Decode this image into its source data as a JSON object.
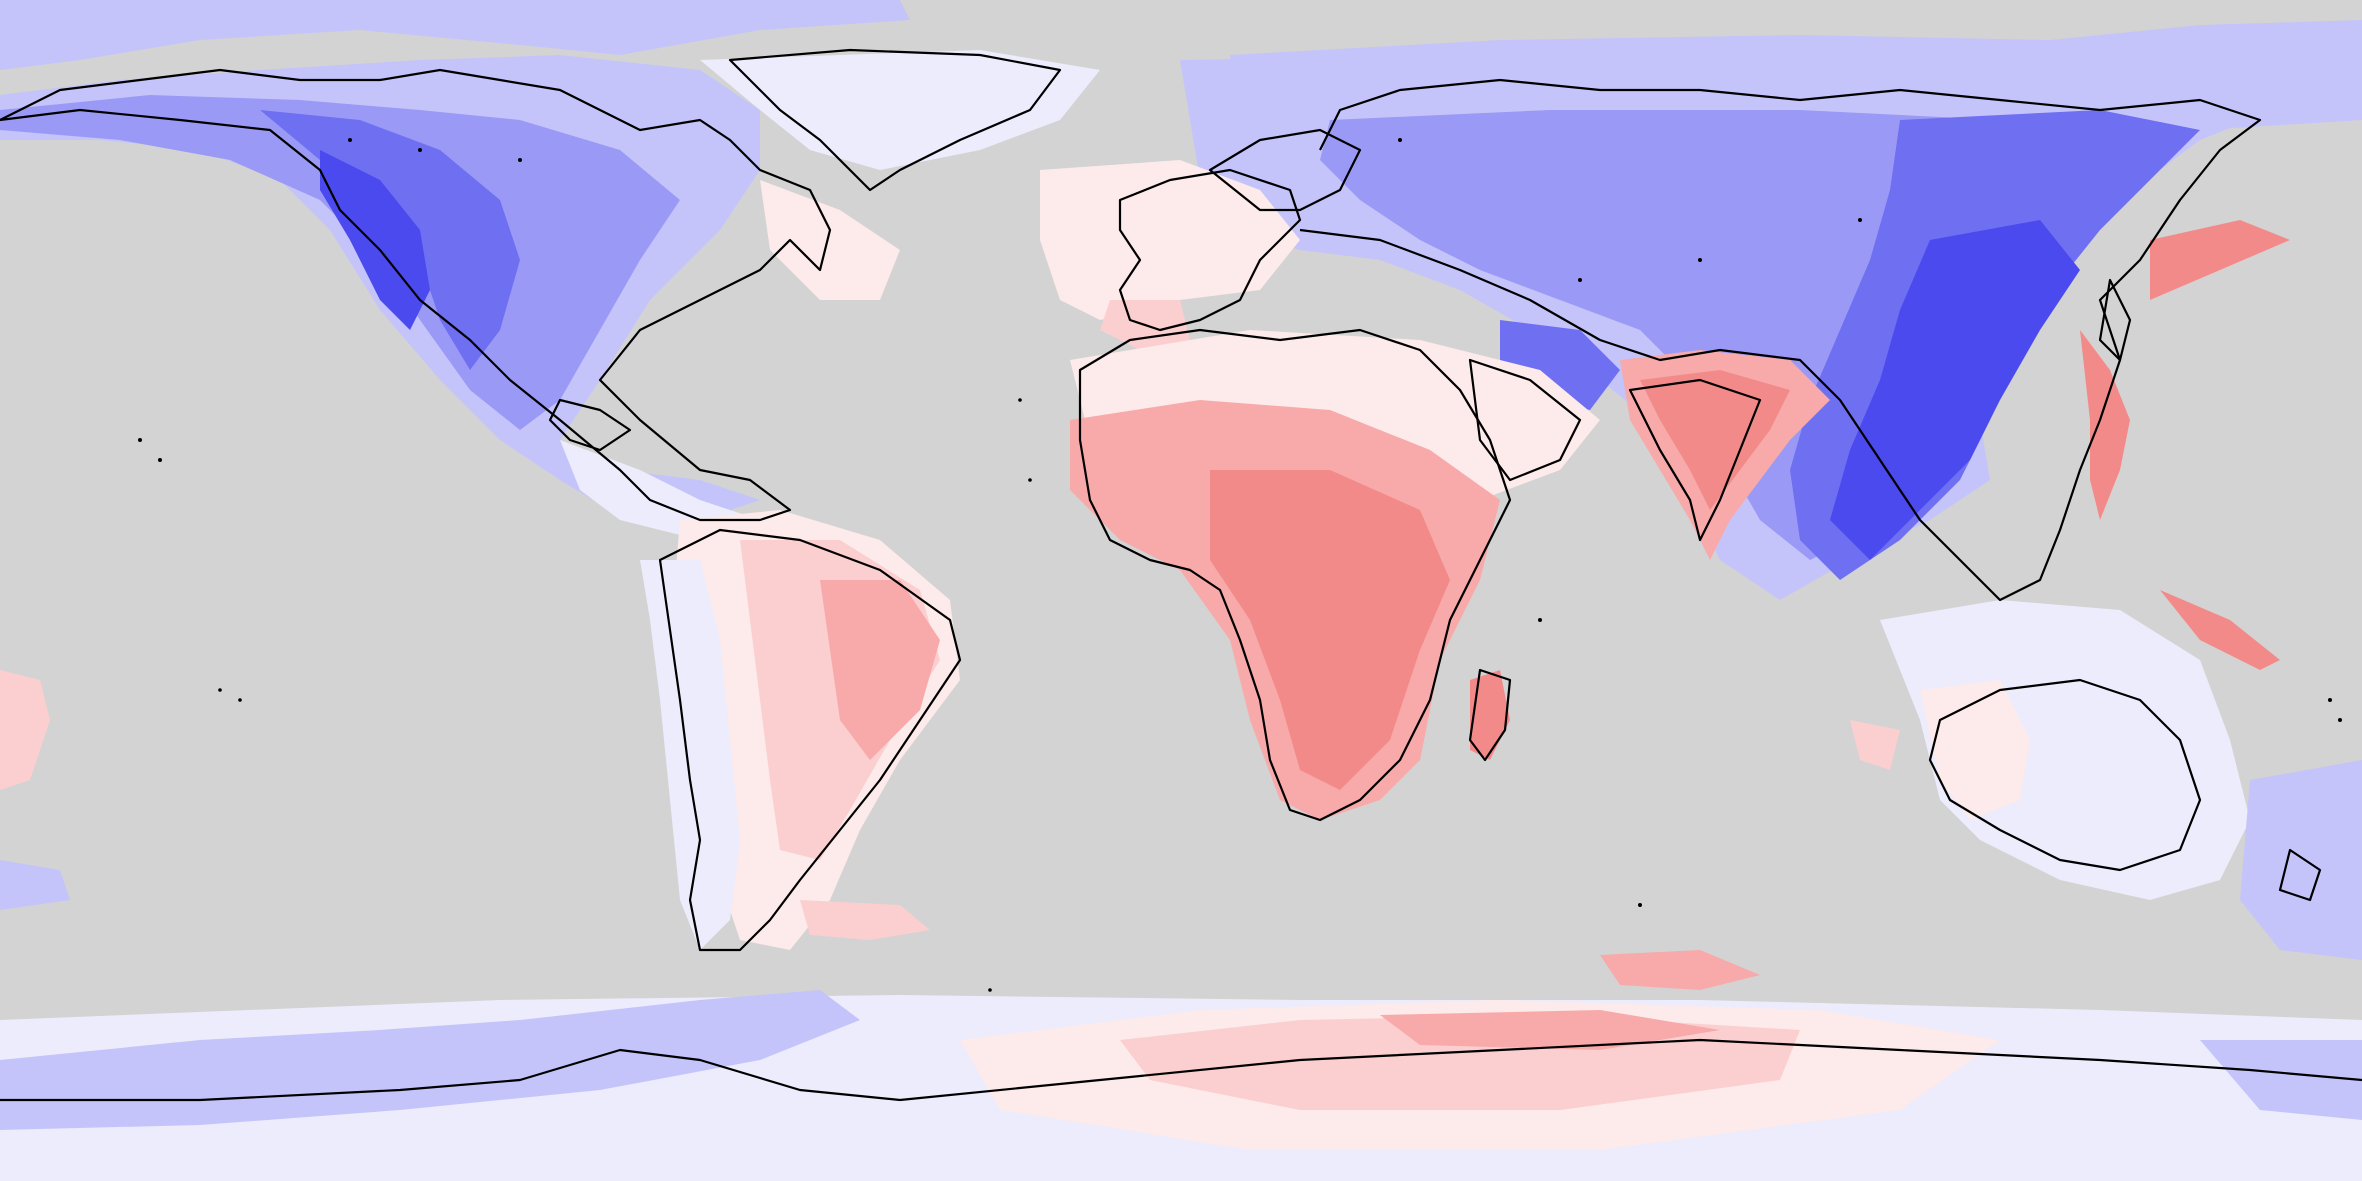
{
  "map": {
    "projection": "equirectangular",
    "extent": "global",
    "background_color": "#d3d3d3",
    "coastline_color": "#000000",
    "has_legend": false,
    "has_title": false,
    "palette": {
      "blue_1": "#ececfc",
      "blue_2": "#c4c4fa",
      "blue_3": "#9a9af6",
      "blue_4": "#6f6ff2",
      "blue_5": "#4a4aee",
      "red_1": "#fdeaea",
      "red_2": "#fbcfcf",
      "red_3": "#f8a9a9",
      "red_4": "#f38a8a",
      "red_5": "#ee6a6a"
    }
  }
}
